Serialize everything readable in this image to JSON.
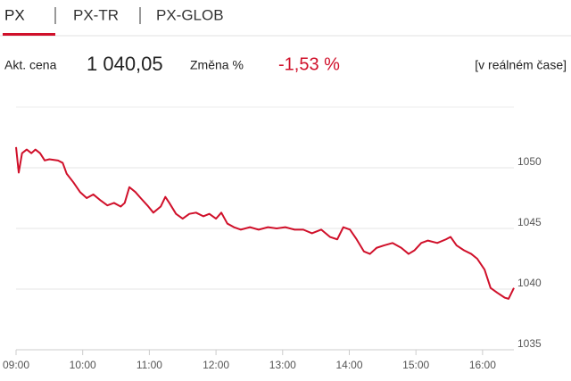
{
  "tabs": [
    "PX",
    "PX-TR",
    "PX-GLOB"
  ],
  "quote": {
    "price_label": "Akt. cena",
    "price": "1 040,05",
    "change_label": "Změna %",
    "change": "-1,53 %",
    "mode": "[v reálném čase]"
  },
  "chart_data": {
    "type": "line",
    "color": "#d0102a",
    "grid": true,
    "x": [
      9,
      9.04,
      9.09,
      9.16,
      9.23,
      9.29,
      9.36,
      9.43,
      9.5,
      9.63,
      9.7,
      9.76,
      9.86,
      9.96,
      10.06,
      10.16,
      10.27,
      10.37,
      10.47,
      10.57,
      10.63,
      10.7,
      10.79,
      10.87,
      10.97,
      11.06,
      11.17,
      11.24,
      11.3,
      11.4,
      11.5,
      11.6,
      11.7,
      11.81,
      11.9,
      12,
      12.08,
      12.17,
      12.27,
      12.37,
      12.51,
      12.64,
      12.78,
      12.91,
      13.04,
      13.18,
      13.31,
      13.44,
      13.58,
      13.71,
      13.82,
      13.91,
      14.01,
      14.11,
      14.22,
      14.31,
      14.41,
      14.52,
      14.65,
      14.78,
      14.89,
      14.98,
      15.08,
      15.18,
      15.32,
      15.45,
      15.52,
      15.61,
      15.72,
      15.83,
      15.92,
      16.03,
      16.12,
      16.22,
      16.33,
      16.39,
      16.47
    ],
    "values": [
      1051.7,
      1049.6,
      1051.2,
      1051.5,
      1051.2,
      1051.5,
      1051.2,
      1050.6,
      1050.7,
      1050.6,
      1050.4,
      1049.5,
      1048.8,
      1048.0,
      1047.5,
      1047.8,
      1047.3,
      1046.9,
      1047.1,
      1046.8,
      1047.1,
      1048.4,
      1048.0,
      1047.5,
      1046.9,
      1046.3,
      1046.8,
      1047.6,
      1047.1,
      1046.2,
      1045.8,
      1046.2,
      1046.3,
      1046.0,
      1046.2,
      1045.8,
      1046.3,
      1045.4,
      1045.1,
      1044.9,
      1045.1,
      1044.9,
      1045.1,
      1045.0,
      1045.1,
      1044.9,
      1044.9,
      1044.6,
      1044.9,
      1044.3,
      1044.1,
      1045.1,
      1044.9,
      1044.1,
      1043.1,
      1042.9,
      1043.4,
      1043.6,
      1043.8,
      1043.4,
      1042.9,
      1043.2,
      1043.8,
      1044.0,
      1043.8,
      1044.1,
      1044.3,
      1043.6,
      1043.2,
      1042.9,
      1042.5,
      1041.6,
      1040.1,
      1039.7,
      1039.3,
      1039.2,
      1040.1
    ],
    "xlim": [
      9,
      16.47
    ],
    "xticks": [
      {
        "value": 9,
        "label": "09:00"
      },
      {
        "value": 10,
        "label": "10:00"
      },
      {
        "value": 11,
        "label": "11:00"
      },
      {
        "value": 12,
        "label": "12:00"
      },
      {
        "value": 13,
        "label": "13:00"
      },
      {
        "value": 14,
        "label": "14:00"
      },
      {
        "value": 15,
        "label": "15:00"
      },
      {
        "value": 16,
        "label": "16:00"
      }
    ],
    "ylim": [
      1035,
      1055
    ],
    "yticks": [
      1035,
      1040,
      1045,
      1050
    ]
  }
}
